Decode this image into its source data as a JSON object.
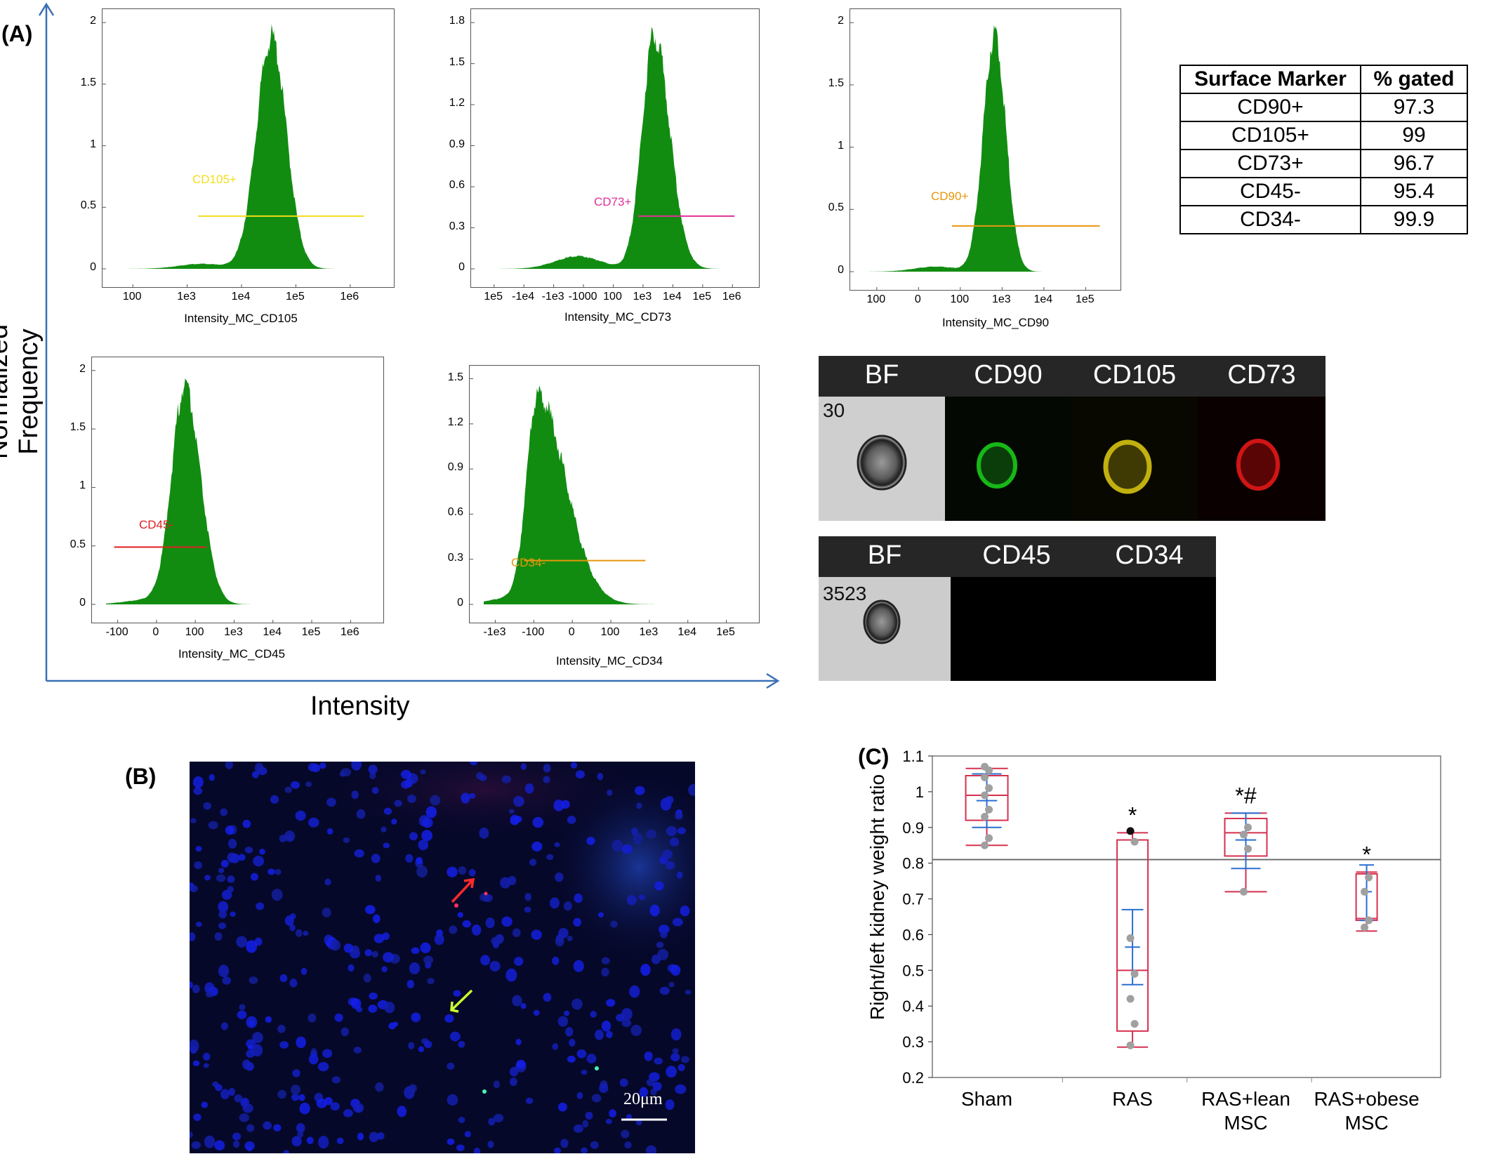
{
  "panel_labels": {
    "a": "(A)",
    "b": "(B)",
    "c": "(C)"
  },
  "axis_titles": {
    "y": "Normalized Frequency",
    "x": "Intensity"
  },
  "histogram_color": "#118c11",
  "histograms": [
    {
      "id": "cd105",
      "xlabel": "Intensity_MC_CD105",
      "gate_label": "CD105+",
      "gate_color": "#f2dd1a",
      "yticks": [
        "0",
        "0.5",
        "1",
        "1.5",
        "2"
      ],
      "xticks": [
        "100",
        "1e3",
        "1e4",
        "1e5",
        "1e6"
      ]
    },
    {
      "id": "cd73",
      "xlabel": "Intensity_MC_CD73",
      "gate_label": "CD73+",
      "gate_color": "#e0309a",
      "yticks": [
        "0",
        "0.3",
        "0.6",
        "0.9",
        "1.2",
        "1.5",
        "1.8"
      ],
      "xticks": [
        "1e5",
        "-1e4",
        "-1e3",
        "-1000",
        "100",
        "1e3",
        "1e4",
        "1e5",
        "1e6"
      ]
    },
    {
      "id": "cd90",
      "xlabel": "Intensity_MC_CD90",
      "gate_label": "CD90+",
      "gate_color": "#e8960a",
      "yticks": [
        "0",
        "0.5",
        "1",
        "1.5",
        "2"
      ],
      "xticks": [
        "100",
        "0",
        "100",
        "1e3",
        "1e4",
        "1e5"
      ]
    },
    {
      "id": "cd45",
      "xlabel": "Intensity_MC_CD45",
      "gate_label": "CD45-",
      "gate_color": "#e02020",
      "yticks": [
        "0",
        "0.5",
        "1",
        "1.5",
        "2"
      ],
      "xticks": [
        "-100",
        "0",
        "100",
        "1e3",
        "1e4",
        "1e5",
        "1e6"
      ]
    },
    {
      "id": "cd34",
      "xlabel": "Intensity_MC_CD34",
      "gate_label": "CD34-",
      "gate_color": "#e8960a",
      "yticks": [
        "0",
        "0.3",
        "0.6",
        "0.9",
        "1.2",
        "1.5"
      ],
      "xticks": [
        "-1e3",
        "-100",
        "0",
        "100",
        "1e3",
        "1e4",
        "1e5"
      ]
    }
  ],
  "marker_table": {
    "headers": [
      "Surface Marker",
      "% gated"
    ],
    "rows": [
      [
        "CD90+",
        "97.3"
      ],
      [
        "CD105+",
        "99"
      ],
      [
        "CD73+",
        "96.7"
      ],
      [
        "CD45-",
        "95.4"
      ],
      [
        "CD34-",
        "99.9"
      ]
    ]
  },
  "imaging_strip_1": {
    "headers": [
      "BF",
      "CD90",
      "CD105",
      "CD73"
    ],
    "count": "30"
  },
  "imaging_strip_2": {
    "headers": [
      "BF",
      "CD45",
      "CD34"
    ],
    "count": "3523"
  },
  "micrograph": {
    "scale_label": "20μm"
  },
  "chart_data": {
    "type": "box",
    "ylabel": "Right/left kidney weight ratio",
    "ylim": [
      0.2,
      1.1
    ],
    "yticks": [
      "0.2",
      "0.3",
      "0.4",
      "0.5",
      "0.6",
      "0.7",
      "0.8",
      "0.9",
      "1",
      "1.1"
    ],
    "categories": [
      "Sham",
      "RAS",
      "RAS+lean MSC",
      "RAS+obese MSC"
    ],
    "reference_line": 0.81,
    "groups": [
      {
        "name": "Sham",
        "min": 0.85,
        "q1": 0.92,
        "median": 0.99,
        "q3": 1.045,
        "max": 1.065,
        "mean": 0.975,
        "ci": [
          0.9,
          1.05
        ],
        "points": [
          0.85,
          0.87,
          0.93,
          0.95,
          0.99,
          1.01,
          1.04,
          1.06,
          1.07
        ],
        "annotation": ""
      },
      {
        "name": "RAS",
        "min": 0.285,
        "q1": 0.33,
        "median": 0.5,
        "q3": 0.865,
        "max": 0.885,
        "mean": 0.565,
        "ci": [
          0.46,
          0.67
        ],
        "points": [
          0.29,
          0.35,
          0.42,
          0.49,
          0.59,
          0.86,
          0.89
        ],
        "annotation": "*"
      },
      {
        "name": "RAS+lean MSC",
        "min": 0.72,
        "q1": 0.82,
        "median": 0.885,
        "q3": 0.925,
        "max": 0.94,
        "mean": 0.865,
        "ci": [
          0.785,
          0.94
        ],
        "points": [
          0.72,
          0.84,
          0.88,
          0.9
        ],
        "annotation": "*#"
      },
      {
        "name": "RAS+obese MSC",
        "min": 0.61,
        "q1": 0.64,
        "median": 0.645,
        "q3": 0.77,
        "max": 0.775,
        "mean": 0.72,
        "ci": [
          0.64,
          0.795
        ],
        "points": [
          0.62,
          0.64,
          0.72,
          0.76
        ],
        "annotation": "*"
      }
    ]
  }
}
